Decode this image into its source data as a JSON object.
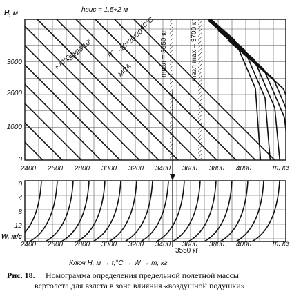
{
  "top_chart": {
    "y_label": "H, м",
    "param": "hвис = 1,5÷2 м",
    "yticks": [
      3000,
      2000,
      1000,
      0
    ],
    "xticks": [
      2400,
      2600,
      2800,
      3000,
      3200,
      3400,
      3600,
      3800,
      4000
    ],
    "x_unit": "m, кг",
    "temperatures": [
      "-40°C",
      "-30°",
      "-20°",
      "-10°",
      "0°",
      "+10°",
      "+20°",
      "+30°",
      "+40°C"
    ],
    "isa": "МСА",
    "m_takeoff": "mвзл = 3550 кг",
    "m_max": "mвзл max = 3700 кг"
  },
  "bottom_chart": {
    "y_label": "W, м/с",
    "yticks": [
      0,
      4,
      8,
      12
    ],
    "xticks": [
      2400,
      2600,
      2800,
      3000,
      3200,
      3400,
      3600,
      3800,
      4000
    ],
    "x_unit": "m, кг",
    "marker": "3550 кг"
  },
  "key": "Ключ  H, м → t,°C → W → m, кг",
  "caption": {
    "label": "Рис. 18.",
    "lines": [
      "Номограмма определения предельной полетной массы",
      "вертолета для взлета в зоне влияния «воздушной подушки»"
    ]
  }
}
